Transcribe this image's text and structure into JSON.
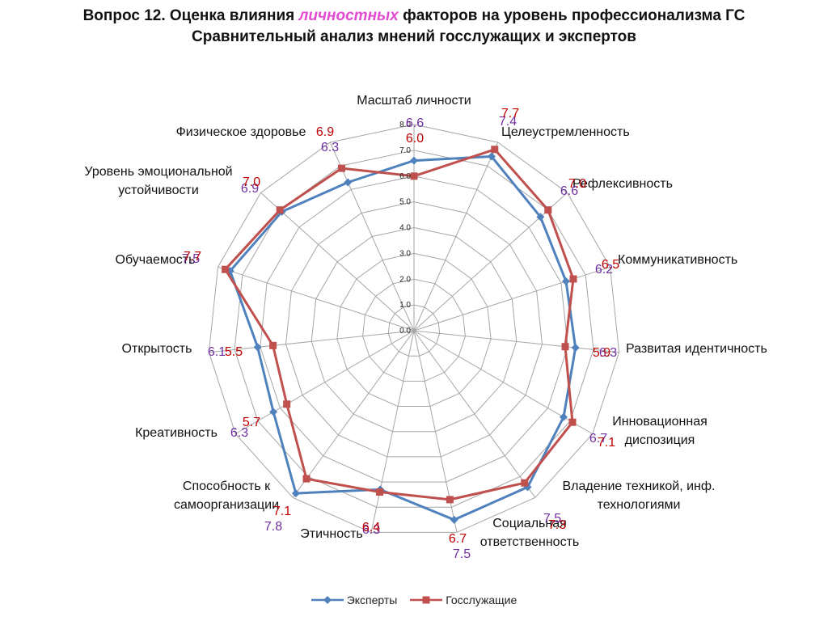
{
  "title": {
    "line1_prefix": "Вопрос 12. Оценка влияния ",
    "line1_highlight": "личностных",
    "line1_suffix": " факторов на уровень профессионализма ГС",
    "line2": "Сравнительный анализ мнений госслужащих и экспертов"
  },
  "colors": {
    "experts": "#4f81bd",
    "gov": "#c0504d",
    "experts_label": "#7030a0",
    "gov_label": "#c00000",
    "highlight": "#e24bd0",
    "grid": "#a6a6a6"
  },
  "chart_data": {
    "type": "radar",
    "title": "",
    "rlim": [
      0,
      8
    ],
    "ticks": [
      "0.0",
      "1.0",
      "2.0",
      "3.0",
      "4.0",
      "5.0",
      "6.0",
      "7.0",
      "8.0"
    ],
    "grid": true,
    "legend_position": "bottom",
    "categories": [
      [
        "Масштаб личности"
      ],
      [
        "Целеустремленность"
      ],
      [
        "Рефлексивность"
      ],
      [
        "Коммуникативность"
      ],
      [
        "Развитая идентичность"
      ],
      [
        "Инновационная",
        "диспозиция"
      ],
      [
        "Владение техникой, инф.",
        "технологиями"
      ],
      [
        "Социальная",
        "ответственность"
      ],
      [
        "Этичность"
      ],
      [
        "Способность к",
        "самоорганизации"
      ],
      [
        "Креативность"
      ],
      [
        "Открытость"
      ],
      [
        "Обучаемость"
      ],
      [
        "Уровень эмоциональной",
        "устойчивости"
      ],
      [
        "Физическое здоровье"
      ]
    ],
    "series": [
      {
        "name": "Эксперты",
        "values": [
          6.6,
          7.4,
          6.6,
          6.2,
          6.3,
          6.7,
          7.5,
          7.5,
          6.3,
          7.8,
          6.3,
          6.1,
          7.5,
          6.9,
          6.3
        ],
        "labels": [
          "6.6",
          "7.4",
          "6.6",
          "6.2",
          "6.3",
          "6.7",
          "7.5",
          "7.5",
          "6.3",
          "7.8",
          "6.3",
          "6.1",
          "7.5",
          "6.9",
          "6.3"
        ]
      },
      {
        "name": "Госслужащие",
        "values": [
          6.0,
          7.7,
          7.0,
          6.5,
          5.9,
          7.1,
          7.3,
          6.7,
          6.4,
          7.1,
          5.7,
          5.5,
          7.7,
          7.0,
          6.9
        ],
        "labels": [
          "6.0",
          "7.7",
          "7.0",
          "6.5",
          "5.9",
          "7.1",
          "7.3",
          "6.7",
          "6.4",
          "7.1",
          "5.7",
          "5.5",
          "7.7",
          "7.0",
          "6.9"
        ]
      }
    ]
  }
}
